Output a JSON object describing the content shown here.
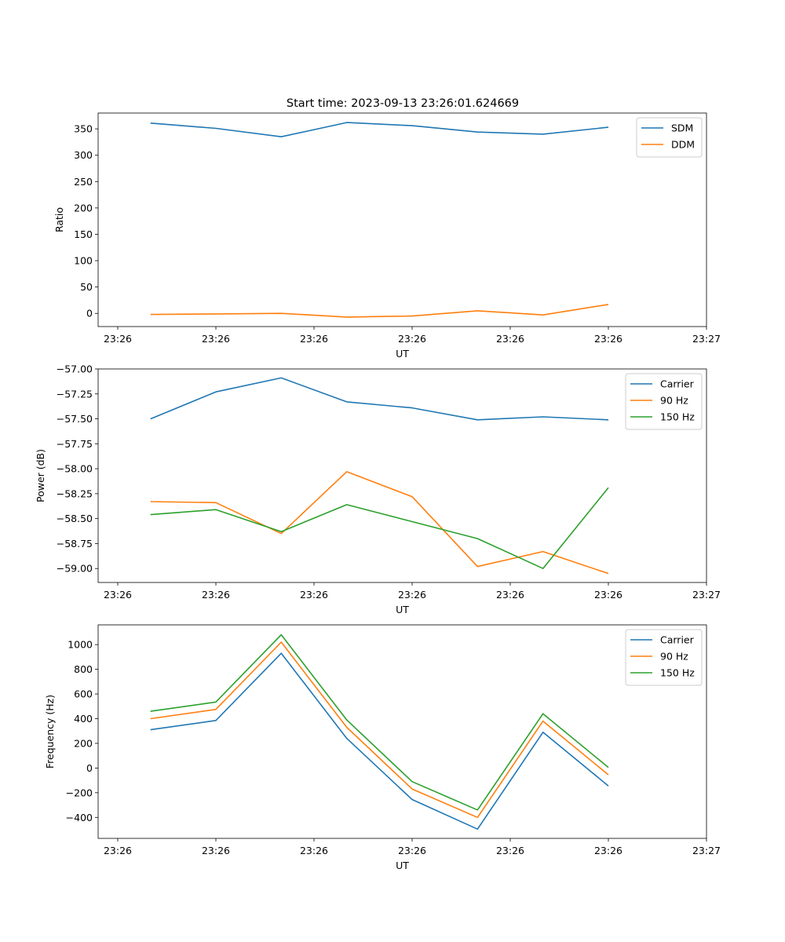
{
  "title": "Start time: 2023-09-13 23:26:01.624669",
  "colors": {
    "blue": "#1f77b4",
    "orange": "#ff7f0e",
    "green": "#2ca02c"
  },
  "chart_data": [
    {
      "type": "line",
      "xlabel": "UT",
      "ylabel": "Ratio",
      "x": [
        1,
        2,
        3,
        4,
        5,
        6,
        7,
        8
      ],
      "xlim": [
        0.2,
        9.5
      ],
      "xticks": [
        0.5,
        2,
        3.5,
        5,
        6.5,
        8,
        9.5
      ],
      "xtick_labels": [
        "23:26",
        "23:26",
        "23:26",
        "23:26",
        "23:26",
        "23:26",
        "23:27"
      ],
      "ylim": [
        -25,
        380
      ],
      "yticks": [
        0,
        50,
        100,
        150,
        200,
        250,
        300,
        350
      ],
      "ytick_labels": [
        "0",
        "50",
        "100",
        "150",
        "200",
        "250",
        "300",
        "350"
      ],
      "legend": "top-right",
      "series": [
        {
          "name": "SDM",
          "color": "#1f77b4",
          "values": [
            361,
            351,
            335,
            362,
            356,
            344,
            340,
            353
          ]
        },
        {
          "name": "DDM",
          "color": "#ff7f0e",
          "values": [
            -2,
            -1,
            0,
            -7,
            -5,
            5,
            -3,
            17
          ]
        }
      ]
    },
    {
      "type": "line",
      "xlabel": "UT",
      "ylabel": "Power (dB)",
      "x": [
        1,
        2,
        3,
        4,
        5,
        6,
        7,
        8
      ],
      "xlim": [
        0.2,
        9.5
      ],
      "xticks": [
        0.5,
        2,
        3.5,
        5,
        6.5,
        8,
        9.5
      ],
      "xtick_labels": [
        "23:26",
        "23:26",
        "23:26",
        "23:26",
        "23:26",
        "23:26",
        "23:27"
      ],
      "ylim": [
        -59.14,
        -57.0
      ],
      "yticks": [
        -57.0,
        -57.25,
        -57.5,
        -57.75,
        -58.0,
        -58.25,
        -58.5,
        -58.75,
        -59.0
      ],
      "ytick_labels": [
        "−57.00",
        "−57.25",
        "−57.50",
        "−57.75",
        "−58.00",
        "−58.25",
        "−58.50",
        "−58.75",
        "−59.00"
      ],
      "legend": "top-right",
      "series": [
        {
          "name": "Carrier",
          "color": "#1f77b4",
          "values": [
            -57.5,
            -57.23,
            -57.09,
            -57.33,
            -57.39,
            -57.51,
            -57.48,
            -57.51
          ]
        },
        {
          "name": "90 Hz",
          "color": "#ff7f0e",
          "values": [
            -58.33,
            -58.34,
            -58.65,
            -58.03,
            -58.28,
            -58.98,
            -58.83,
            -59.05
          ]
        },
        {
          "name": "150 Hz",
          "color": "#2ca02c",
          "values": [
            -58.46,
            -58.41,
            -58.63,
            -58.36,
            -58.53,
            -58.7,
            -59.0,
            -58.19
          ]
        }
      ]
    },
    {
      "type": "line",
      "xlabel": "UT",
      "ylabel": "Frequency (Hz)",
      "x": [
        1,
        2,
        3,
        4,
        5,
        6,
        7,
        8
      ],
      "xlim": [
        0.2,
        9.5
      ],
      "xticks": [
        0.5,
        2,
        3.5,
        5,
        6.5,
        8,
        9.5
      ],
      "xtick_labels": [
        "23:26",
        "23:26",
        "23:26",
        "23:26",
        "23:26",
        "23:26",
        "23:27"
      ],
      "ylim": [
        -570,
        1160
      ],
      "yticks": [
        -400,
        -200,
        0,
        200,
        400,
        600,
        800,
        1000
      ],
      "ytick_labels": [
        "−400",
        "−200",
        "0",
        "200",
        "400",
        "600",
        "800",
        "1000"
      ],
      "legend": "top-right",
      "series": [
        {
          "name": "Carrier",
          "color": "#1f77b4",
          "values": [
            310,
            385,
            930,
            240,
            -255,
            -495,
            290,
            -145
          ]
        },
        {
          "name": "90 Hz",
          "color": "#ff7f0e",
          "values": [
            400,
            475,
            1020,
            330,
            -170,
            -400,
            380,
            -55
          ]
        },
        {
          "name": "150 Hz",
          "color": "#2ca02c",
          "values": [
            460,
            535,
            1080,
            390,
            -110,
            -340,
            440,
            5
          ]
        }
      ]
    }
  ]
}
